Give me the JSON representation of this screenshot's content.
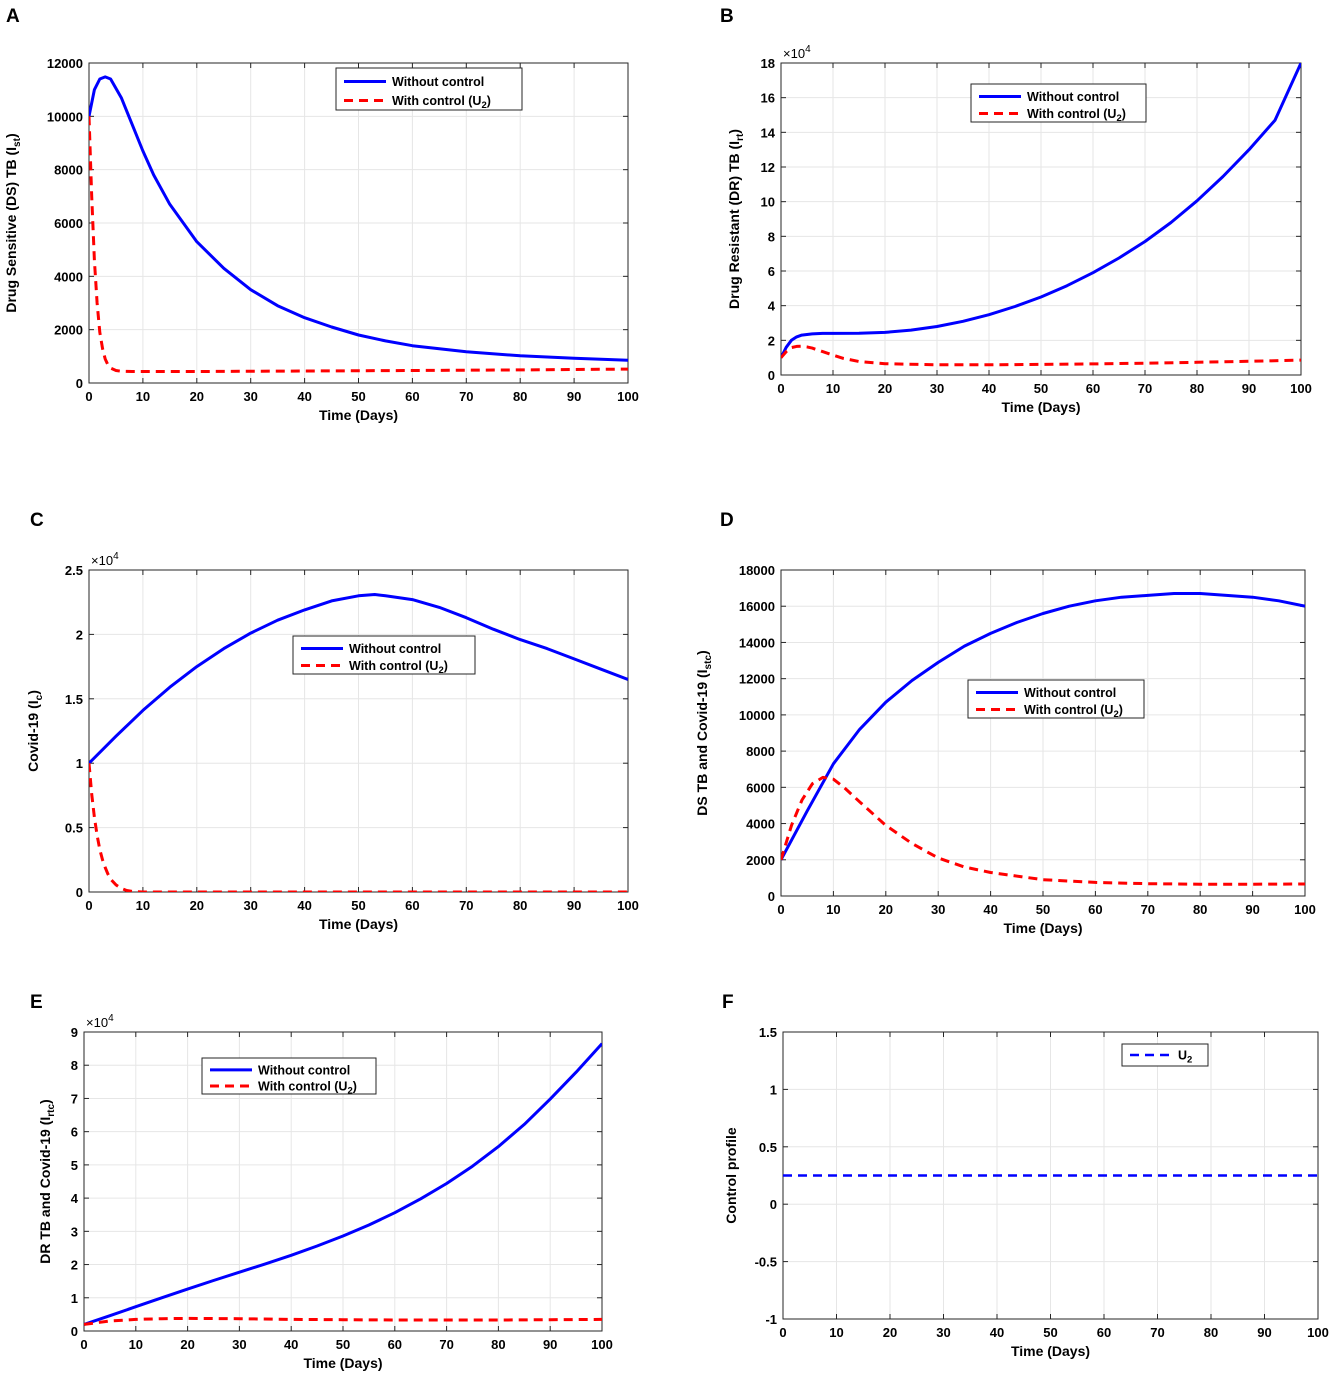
{
  "figure": {
    "legend": {
      "without_control": "Without control",
      "with_control_prefix": "With control (U",
      "with_control_sub": "2",
      "with_control_suffix": ")",
      "u2_main": "U",
      "u2_sub": "2"
    },
    "colors": {
      "without": "#0000ff",
      "with": "#ff0000",
      "grid": "#e6e6e6"
    }
  },
  "chart_data": [
    {
      "id": "A",
      "type": "line",
      "title": "",
      "xlabel": "Time (Days)",
      "ylabel": {
        "main": "Drug Sensitive (DS) TB (I",
        "sub": "st",
        "suffix": ")"
      },
      "xlim": [
        0,
        100
      ],
      "ylim": [
        0,
        12000
      ],
      "xticks": [
        0,
        10,
        20,
        30,
        40,
        50,
        60,
        70,
        80,
        90,
        100
      ],
      "yticks": [
        0,
        2000,
        4000,
        6000,
        8000,
        10000,
        12000
      ],
      "ytick_labels": [
        "0",
        "2000",
        "4000",
        "6000",
        "8000",
        "10000",
        "12000"
      ],
      "exponent": null,
      "legend_position": "top-center",
      "series": [
        {
          "name": "Without control",
          "style": "solid",
          "x": [
            0,
            1,
            2,
            3,
            4,
            6,
            8,
            10,
            12,
            15,
            20,
            25,
            30,
            35,
            40,
            45,
            50,
            55,
            60,
            70,
            80,
            90,
            100
          ],
          "y": [
            10000,
            11000,
            11400,
            11480,
            11400,
            10700,
            9700,
            8700,
            7800,
            6700,
            5300,
            4300,
            3500,
            2900,
            2450,
            2100,
            1800,
            1580,
            1400,
            1170,
            1020,
            930,
            850
          ]
        },
        {
          "name": "With control (U2)",
          "style": "dashed",
          "x": [
            0,
            0.5,
            1,
            1.5,
            2,
            2.5,
            3,
            3.5,
            4,
            5,
            6,
            8,
            10,
            20,
            40,
            60,
            80,
            100
          ],
          "y": [
            10000,
            7000,
            4600,
            3000,
            1900,
            1300,
            900,
            680,
            560,
            470,
            440,
            430,
            430,
            430,
            450,
            470,
            490,
            520
          ]
        }
      ]
    },
    {
      "id": "B",
      "type": "line",
      "title": "",
      "xlabel": "Time (Days)",
      "ylabel": {
        "main": "Drug Resistant (DR) TB (I",
        "sub": "rt",
        "suffix": ")"
      },
      "xlim": [
        0,
        100
      ],
      "ylim": [
        0,
        180000
      ],
      "xticks": [
        0,
        10,
        20,
        30,
        40,
        50,
        60,
        70,
        80,
        90,
        100
      ],
      "yticks": [
        0,
        20000,
        40000,
        60000,
        80000,
        100000,
        120000,
        140000,
        160000,
        180000
      ],
      "ytick_labels": [
        "0",
        "2",
        "4",
        "6",
        "8",
        "10",
        "12",
        "14",
        "16",
        "18"
      ],
      "exponent": "4",
      "legend_position": "top-center",
      "series": [
        {
          "name": "Without control",
          "style": "solid",
          "x": [
            0,
            1,
            2,
            3,
            4,
            6,
            8,
            10,
            15,
            20,
            25,
            30,
            35,
            40,
            45,
            50,
            55,
            60,
            65,
            70,
            75,
            80,
            85,
            90,
            95,
            100
          ],
          "y": [
            10000,
            16000,
            20000,
            22000,
            23000,
            23700,
            24000,
            24000,
            24100,
            24600,
            25900,
            28000,
            31000,
            34800,
            39500,
            45000,
            51500,
            59000,
            67500,
            77000,
            88000,
            100500,
            114500,
            130000,
            147000,
            180000
          ]
        },
        {
          "name": "With control (U2)",
          "style": "dashed",
          "x": [
            0,
            1,
            2,
            3,
            4,
            5,
            6,
            8,
            10,
            12,
            15,
            20,
            30,
            40,
            50,
            60,
            70,
            80,
            90,
            100
          ],
          "y": [
            10000,
            13500,
            15800,
            16500,
            16600,
            16200,
            15500,
            13500,
            11500,
            9600,
            7800,
            6500,
            5900,
            5900,
            6100,
            6400,
            6800,
            7300,
            7900,
            8600
          ]
        }
      ]
    },
    {
      "id": "C",
      "type": "line",
      "title": "",
      "xlabel": "Time (Days)",
      "ylabel": {
        "main": "Covid-19 (I",
        "sub": "c",
        "suffix": ")"
      },
      "xlim": [
        0,
        100
      ],
      "ylim": [
        0,
        25000
      ],
      "xticks": [
        0,
        10,
        20,
        30,
        40,
        50,
        60,
        70,
        80,
        90,
        100
      ],
      "yticks": [
        0,
        5000,
        10000,
        15000,
        20000,
        25000
      ],
      "ytick_labels": [
        "0",
        "0.5",
        "1",
        "1.5",
        "2",
        "2.5"
      ],
      "exponent": "4",
      "legend_position": "center",
      "series": [
        {
          "name": "Without control",
          "style": "solid",
          "x": [
            0,
            5,
            10,
            15,
            20,
            25,
            30,
            35,
            40,
            45,
            50,
            53,
            55,
            60,
            65,
            70,
            75,
            80,
            85,
            90,
            95,
            100
          ],
          "y": [
            10000,
            12100,
            14100,
            15900,
            17500,
            18900,
            20100,
            21100,
            21900,
            22600,
            23000,
            23100,
            23000,
            22700,
            22100,
            21300,
            20400,
            19600,
            18900,
            18100,
            17300,
            16500
          ]
        },
        {
          "name": "With control (U2)",
          "style": "dashed",
          "x": [
            0,
            0.5,
            1,
            1.5,
            2,
            2.5,
            3,
            3.5,
            4,
            5,
            6,
            7,
            8,
            10,
            20,
            50,
            100
          ],
          "y": [
            10000,
            7600,
            5800,
            4400,
            3300,
            2500,
            1900,
            1400,
            1000,
            550,
            280,
            120,
            50,
            0,
            0,
            0,
            0
          ]
        }
      ]
    },
    {
      "id": "D",
      "type": "line",
      "title": "",
      "xlabel": "Time (Days)",
      "ylabel": {
        "main": "DS TB and Covid-19 (I",
        "sub": "stc",
        "suffix": ")"
      },
      "xlim": [
        0,
        100
      ],
      "ylim": [
        0,
        18000
      ],
      "xticks": [
        0,
        10,
        20,
        30,
        40,
        50,
        60,
        70,
        80,
        90,
        100
      ],
      "yticks": [
        0,
        2000,
        4000,
        6000,
        8000,
        10000,
        12000,
        14000,
        16000,
        18000
      ],
      "ytick_labels": [
        "0",
        "2000",
        "4000",
        "6000",
        "8000",
        "10000",
        "12000",
        "14000",
        "16000",
        "18000"
      ],
      "exponent": null,
      "legend_position": "center-right",
      "series": [
        {
          "name": "Without control",
          "style": "solid",
          "x": [
            0,
            5,
            10,
            15,
            20,
            25,
            30,
            35,
            40,
            45,
            50,
            55,
            60,
            65,
            70,
            75,
            80,
            85,
            90,
            95,
            100
          ],
          "y": [
            2000,
            4700,
            7300,
            9200,
            10700,
            11900,
            12900,
            13800,
            14500,
            15100,
            15600,
            16000,
            16300,
            16500,
            16600,
            16700,
            16700,
            16600,
            16500,
            16300,
            16000
          ]
        },
        {
          "name": "With control (U2)",
          "style": "dashed",
          "x": [
            0,
            2,
            4,
            6,
            8,
            10,
            12,
            15,
            20,
            25,
            30,
            35,
            40,
            50,
            60,
            70,
            80,
            90,
            100
          ],
          "y": [
            2000,
            3900,
            5300,
            6200,
            6550,
            6450,
            6000,
            5200,
            3900,
            2900,
            2100,
            1600,
            1300,
            900,
            750,
            680,
            650,
            650,
            660
          ]
        }
      ]
    },
    {
      "id": "E",
      "type": "line",
      "title": "",
      "xlabel": "Time (Days)",
      "ylabel": {
        "main": "DR TB and Covid-19 (I",
        "sub": "rtc",
        "suffix": ")"
      },
      "xlim": [
        0,
        100
      ],
      "ylim": [
        0,
        90000
      ],
      "xticks": [
        0,
        10,
        20,
        30,
        40,
        50,
        60,
        70,
        80,
        90,
        100
      ],
      "yticks": [
        0,
        10000,
        20000,
        30000,
        40000,
        50000,
        60000,
        70000,
        80000,
        90000
      ],
      "ytick_labels": [
        "0",
        "1",
        "2",
        "3",
        "4",
        "5",
        "6",
        "7",
        "8",
        "9"
      ],
      "exponent": "4",
      "legend_position": "top-left",
      "series": [
        {
          "name": "Without control",
          "style": "solid",
          "x": [
            0,
            5,
            10,
            15,
            20,
            25,
            30,
            35,
            40,
            45,
            50,
            55,
            60,
            65,
            70,
            75,
            80,
            85,
            90,
            95,
            100
          ],
          "y": [
            2000,
            4600,
            7300,
            10000,
            12600,
            15200,
            17700,
            20200,
            22800,
            25600,
            28600,
            31900,
            35600,
            39800,
            44400,
            49600,
            55500,
            62200,
            69800,
            77900,
            86500
          ]
        },
        {
          "name": "With control (U2)",
          "style": "dashed",
          "x": [
            0,
            5,
            10,
            15,
            20,
            30,
            40,
            50,
            60,
            70,
            80,
            90,
            100
          ],
          "y": [
            2000,
            3000,
            3500,
            3700,
            3800,
            3700,
            3500,
            3400,
            3300,
            3300,
            3300,
            3400,
            3500
          ]
        }
      ]
    },
    {
      "id": "F",
      "type": "line",
      "title": "",
      "xlabel": "Time (Days)",
      "ylabel": {
        "main": "Control profile",
        "sub": "",
        "suffix": ""
      },
      "xlim": [
        0,
        100
      ],
      "ylim": [
        -1,
        1.5
      ],
      "xticks": [
        0,
        10,
        20,
        30,
        40,
        50,
        60,
        70,
        80,
        90,
        100
      ],
      "yticks": [
        -1,
        -0.5,
        0,
        0.5,
        1,
        1.5
      ],
      "ytick_labels": [
        "-1",
        "-0.5",
        "0",
        "0.5",
        "1",
        "1.5"
      ],
      "exponent": null,
      "legend_position": "top-right",
      "series": [
        {
          "name": "U2",
          "style": "dashed-blue",
          "x": [
            0,
            100
          ],
          "y": [
            0.25,
            0.25
          ]
        }
      ]
    }
  ]
}
